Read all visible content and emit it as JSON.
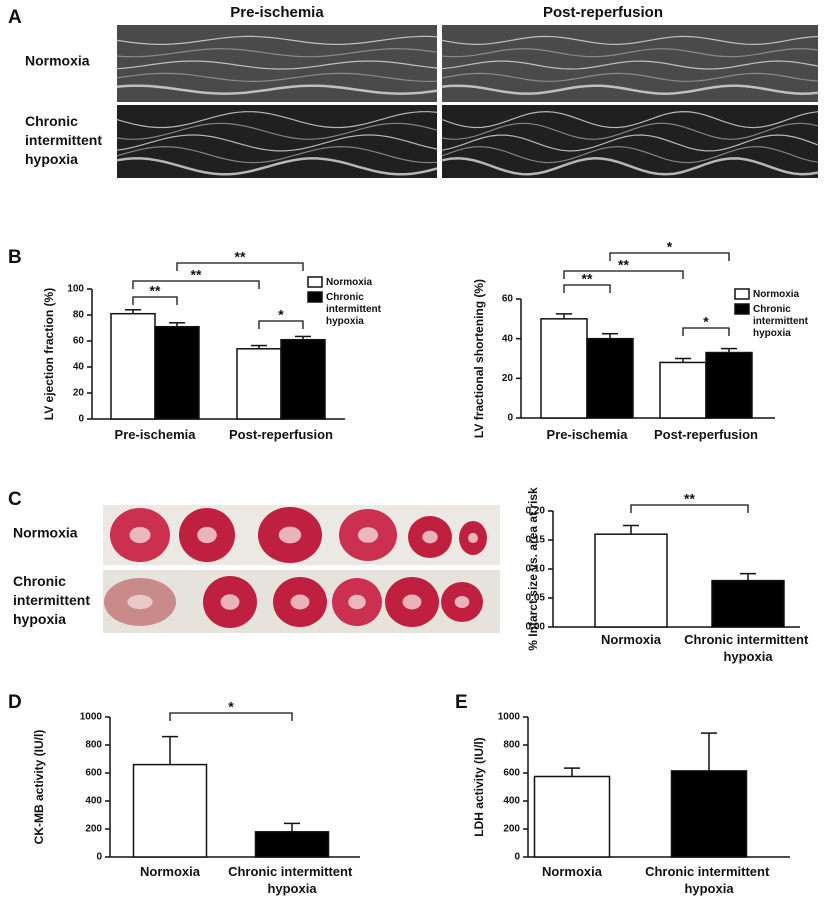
{
  "panel_labels": [
    "A",
    "B",
    "C",
    "D",
    "E"
  ],
  "panel_a": {
    "columns": [
      "Pre-ischemia",
      "Post-reperfusion"
    ],
    "rows": [
      "Normoxia",
      "Chronic intermittent hypoxia"
    ]
  },
  "panel_c": {
    "rows": [
      "Normoxia",
      "Chronic intermittent hypoxia"
    ]
  },
  "chart_data": [
    {
      "type": "bar",
      "y_label": "LV ejection fraction (%)",
      "categories": [
        "Pre-ischemia",
        "Post-reperfusion"
      ],
      "series": [
        {
          "name": "Normoxia",
          "color": "#ffffff",
          "values": [
            81,
            54
          ],
          "errors": [
            3,
            2.5
          ]
        },
        {
          "name": "Chronic intermittent hypoxia",
          "color": "#000000",
          "values": [
            71,
            61
          ],
          "errors": [
            3,
            2.5
          ]
        }
      ],
      "ylim": [
        0,
        100
      ],
      "yticks": [
        0,
        20,
        40,
        60,
        80,
        100
      ],
      "annotations": [
        "**",
        "**",
        "**",
        "*"
      ],
      "legend": "upper right"
    },
    {
      "type": "bar",
      "y_label": "LV fractional shortening (%)",
      "categories": [
        "Pre-ischemia",
        "Post-reperfusion"
      ],
      "series": [
        {
          "name": "Normoxia",
          "color": "#ffffff",
          "values": [
            50,
            28
          ],
          "errors": [
            2.5,
            2
          ]
        },
        {
          "name": "Chronic intermittent hypoxia",
          "color": "#000000",
          "values": [
            40,
            33
          ],
          "errors": [
            2.5,
            2
          ]
        }
      ],
      "ylim": [
        0,
        60
      ],
      "yticks": [
        0,
        20,
        40,
        60
      ],
      "annotations": [
        "**",
        "**",
        "*",
        "*"
      ],
      "legend": "upper right"
    },
    {
      "type": "bar",
      "y_label": "% Infarct size vs. area at risk",
      "categories": [
        "Normoxia",
        "Chronic intermittent hypoxia"
      ],
      "values": [
        0.16,
        0.08
      ],
      "errors": [
        0.015,
        0.012
      ],
      "colors": [
        "#ffffff",
        "#000000"
      ],
      "ylim": [
        0,
        0.2
      ],
      "yticks": [
        {
          "value": 0,
          "label": "0.00"
        },
        0.05,
        {
          "value": 0.1,
          "label": "0.10"
        },
        0.15,
        {
          "value": 0.2,
          "label": "0.20"
        }
      ],
      "annotations": [
        "**"
      ]
    },
    {
      "type": "bar",
      "y_label": "CK-MB activity (IU/l)",
      "categories": [
        "Normoxia",
        "Chronic intermittent hypoxia"
      ],
      "values": [
        660,
        180
      ],
      "errors": [
        200,
        60
      ],
      "colors": [
        "#ffffff",
        "#000000"
      ],
      "ylim": [
        0,
        1000
      ],
      "yticks": [
        0,
        200,
        400,
        600,
        800,
        1000
      ],
      "annotations": [
        "*"
      ]
    },
    {
      "type": "bar",
      "y_label": "LDH activity (IU/l)",
      "categories": [
        "Normoxia",
        "Chronic intermittent hypoxia"
      ],
      "values": [
        575,
        615
      ],
      "errors": [
        60,
        270
      ],
      "colors": [
        "#ffffff",
        "#000000"
      ],
      "ylim": [
        0,
        1000
      ],
      "yticks": [
        0,
        200,
        400,
        600,
        800,
        1000
      ],
      "annotations": []
    }
  ]
}
